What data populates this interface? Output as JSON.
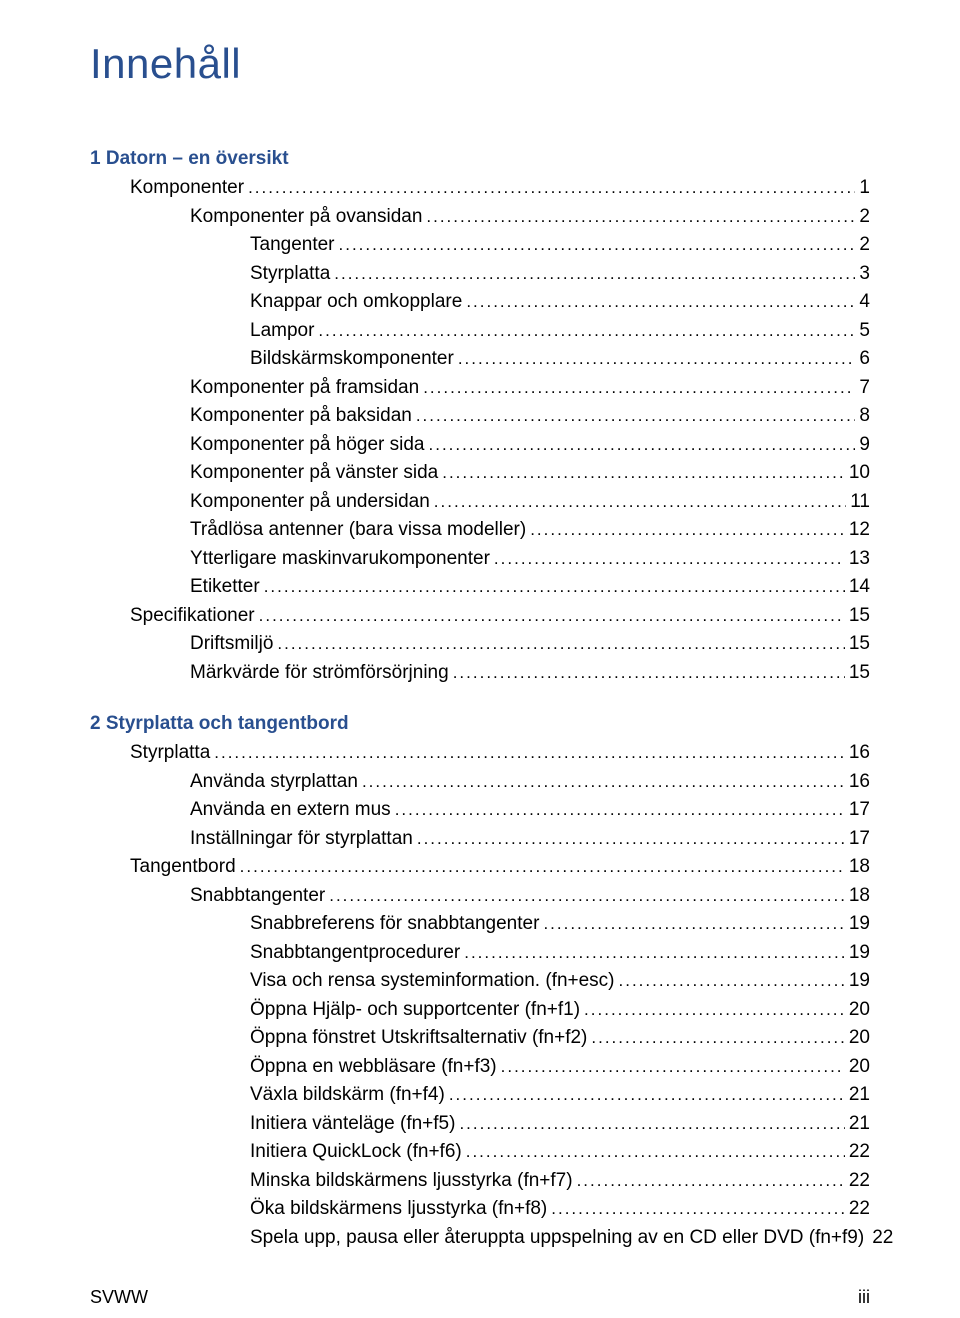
{
  "heading": "Innehåll",
  "chapters": [
    {
      "number": "1",
      "title": "Datorn – en översikt",
      "entries": [
        {
          "indent": 1,
          "label": "Komponenter",
          "page": "1"
        },
        {
          "indent": 2,
          "label": "Komponenter på ovansidan",
          "page": "2"
        },
        {
          "indent": 3,
          "label": "Tangenter",
          "page": "2"
        },
        {
          "indent": 3,
          "label": "Styrplatta",
          "page": "3"
        },
        {
          "indent": 3,
          "label": "Knappar och omkopplare",
          "page": "4"
        },
        {
          "indent": 3,
          "label": "Lampor",
          "page": "5"
        },
        {
          "indent": 3,
          "label": "Bildskärmskomponenter",
          "page": "6"
        },
        {
          "indent": 2,
          "label": "Komponenter på framsidan",
          "page": "7"
        },
        {
          "indent": 2,
          "label": "Komponenter på baksidan",
          "page": "8"
        },
        {
          "indent": 2,
          "label": "Komponenter på höger sida",
          "page": "9"
        },
        {
          "indent": 2,
          "label": "Komponenter på vänster sida",
          "page": "10"
        },
        {
          "indent": 2,
          "label": "Komponenter på undersidan",
          "page": "11"
        },
        {
          "indent": 2,
          "label": "Trådlösa antenner (bara vissa modeller)",
          "page": "12"
        },
        {
          "indent": 2,
          "label": "Ytterligare maskinvarukomponenter",
          "page": "13"
        },
        {
          "indent": 2,
          "label": "Etiketter",
          "page": "14"
        },
        {
          "indent": 1,
          "label": "Specifikationer",
          "page": "15"
        },
        {
          "indent": 2,
          "label": "Driftsmiljö",
          "page": "15"
        },
        {
          "indent": 2,
          "label": "Märkvärde för strömförsörjning",
          "page": "15"
        }
      ]
    },
    {
      "number": "2",
      "title": "Styrplatta och tangentbord",
      "entries": [
        {
          "indent": 1,
          "label": "Styrplatta",
          "page": "16"
        },
        {
          "indent": 2,
          "label": "Använda styrplattan",
          "page": "16"
        },
        {
          "indent": 2,
          "label": "Använda en extern mus",
          "page": "17"
        },
        {
          "indent": 2,
          "label": "Inställningar för styrplattan",
          "page": "17"
        },
        {
          "indent": 1,
          "label": "Tangentbord",
          "page": "18"
        },
        {
          "indent": 2,
          "label": "Snabbtangenter",
          "page": "18"
        },
        {
          "indent": 3,
          "label": "Snabbreferens för snabbtangenter",
          "page": "19"
        },
        {
          "indent": 3,
          "label": "Snabbtangentprocedurer",
          "page": "19"
        },
        {
          "indent": 3,
          "label": "Visa och rensa systeminformation. (fn+esc)",
          "page": "19"
        },
        {
          "indent": 3,
          "label": "Öppna Hjälp- och supportcenter (fn+f1)",
          "page": "20"
        },
        {
          "indent": 3,
          "label": "Öppna fönstret Utskriftsalternativ (fn+f2)",
          "page": "20"
        },
        {
          "indent": 3,
          "label": "Öppna en webbläsare (fn+f3)",
          "page": "20"
        },
        {
          "indent": 3,
          "label": "Växla bildskärm (fn+f4)",
          "page": "21"
        },
        {
          "indent": 3,
          "label": "Initiera vänteläge (fn+f5)",
          "page": "21"
        },
        {
          "indent": 3,
          "label": "Initiera QuickLock (fn+f6)",
          "page": "22"
        },
        {
          "indent": 3,
          "label": "Minska bildskärmens ljusstyrka (fn+f7)",
          "page": "22"
        },
        {
          "indent": 3,
          "label": "Öka bildskärmens ljusstyrka (fn+f8)",
          "page": "22"
        },
        {
          "indent": 3,
          "label": "Spela upp, pausa eller återuppta uppspelning av en CD eller DVD (fn+f9)",
          "page": "22"
        }
      ]
    }
  ],
  "footer": {
    "left": "SVWW",
    "right": "iii"
  },
  "colors": {
    "heading": "#294f8f",
    "text": "#000000",
    "background": "#ffffff"
  },
  "fontsizes": {
    "heading": 42,
    "chapter": 19,
    "entry": 19,
    "footer": 18
  }
}
